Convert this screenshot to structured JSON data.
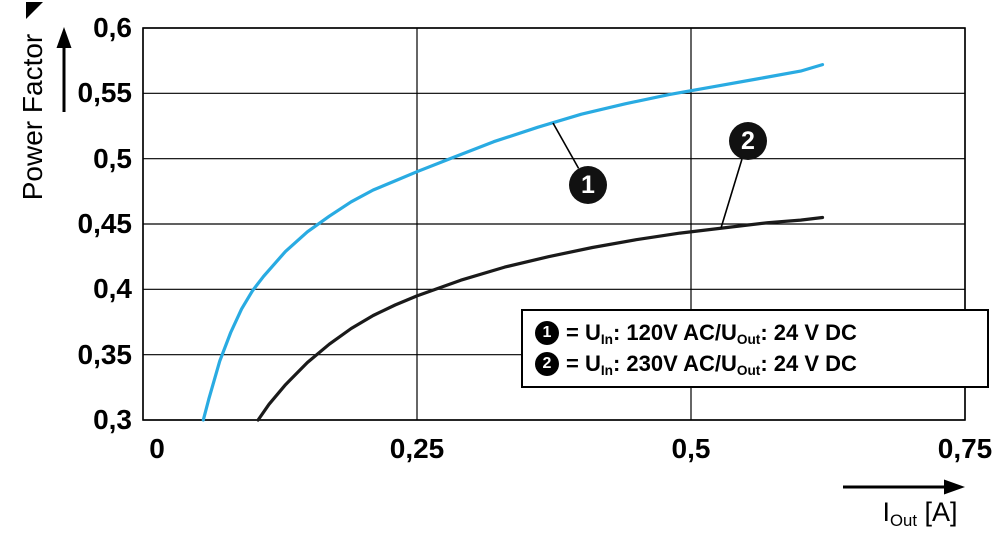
{
  "chart_data": {
    "type": "line",
    "title": "",
    "xlabel": "I_Out [A]",
    "ylabel": "Power Factor",
    "xlim": [
      0,
      0.75
    ],
    "ylim": [
      0.3,
      0.6
    ],
    "grid": true,
    "legend_position": "inside lower right",
    "xticks": {
      "values": [
        0,
        0.25,
        0.5,
        0.75
      ],
      "labels": [
        "0",
        "0,25",
        "0,5",
        "0,75"
      ]
    },
    "yticks": {
      "values": [
        0.3,
        0.35,
        0.4,
        0.45,
        0.5,
        0.55,
        0.6
      ],
      "labels": [
        "0,3",
        "0,35",
        "0,4",
        "0,45",
        "0,5",
        "0,55",
        "0,6"
      ]
    },
    "series": [
      {
        "name": "1",
        "legend": "U_In: 120V AC / U_Out: 24 V DC",
        "color": "#29abe2",
        "points": [
          [
            0.055,
            0.3
          ],
          [
            0.06,
            0.316
          ],
          [
            0.07,
            0.345
          ],
          [
            0.08,
            0.367
          ],
          [
            0.09,
            0.385
          ],
          [
            0.1,
            0.399
          ],
          [
            0.11,
            0.41
          ],
          [
            0.13,
            0.429
          ],
          [
            0.15,
            0.444
          ],
          [
            0.17,
            0.456
          ],
          [
            0.19,
            0.467
          ],
          [
            0.21,
            0.476
          ],
          [
            0.23,
            0.483
          ],
          [
            0.25,
            0.49
          ],
          [
            0.28,
            0.5
          ],
          [
            0.32,
            0.513
          ],
          [
            0.36,
            0.524
          ],
          [
            0.4,
            0.534
          ],
          [
            0.44,
            0.542
          ],
          [
            0.48,
            0.549
          ],
          [
            0.52,
            0.555
          ],
          [
            0.56,
            0.561
          ],
          [
            0.6,
            0.567
          ],
          [
            0.62,
            0.572
          ]
        ]
      },
      {
        "name": "2",
        "legend": "U_In: 230V AC / U_Out: 24 V DC",
        "color": "#1a1a1a",
        "points": [
          [
            0.105,
            0.3
          ],
          [
            0.115,
            0.312
          ],
          [
            0.13,
            0.327
          ],
          [
            0.15,
            0.344
          ],
          [
            0.17,
            0.358
          ],
          [
            0.19,
            0.37
          ],
          [
            0.21,
            0.38
          ],
          [
            0.23,
            0.388
          ],
          [
            0.25,
            0.395
          ],
          [
            0.29,
            0.407
          ],
          [
            0.33,
            0.417
          ],
          [
            0.37,
            0.425
          ],
          [
            0.41,
            0.432
          ],
          [
            0.45,
            0.438
          ],
          [
            0.49,
            0.443
          ],
          [
            0.53,
            0.447
          ],
          [
            0.57,
            0.451
          ],
          [
            0.6,
            0.453
          ],
          [
            0.62,
            0.455
          ]
        ]
      }
    ]
  },
  "xlabel_parts": {
    "main": "I",
    "sub": "Out",
    "unit": " [A]"
  },
  "badges": {
    "b1": "1",
    "b2": "2"
  },
  "legend": {
    "entry1": {
      "badge": "1",
      "p1": "= U",
      "s1": "In",
      "p2": ": 120V AC/U",
      "s2": "Out",
      "p3": ": 24 V DC"
    },
    "entry2": {
      "badge": "2",
      "p1": "= U",
      "s1": "In",
      "p2": ": 230V AC/U",
      "s2": "Out",
      "p3": ": 24 V DC"
    }
  }
}
